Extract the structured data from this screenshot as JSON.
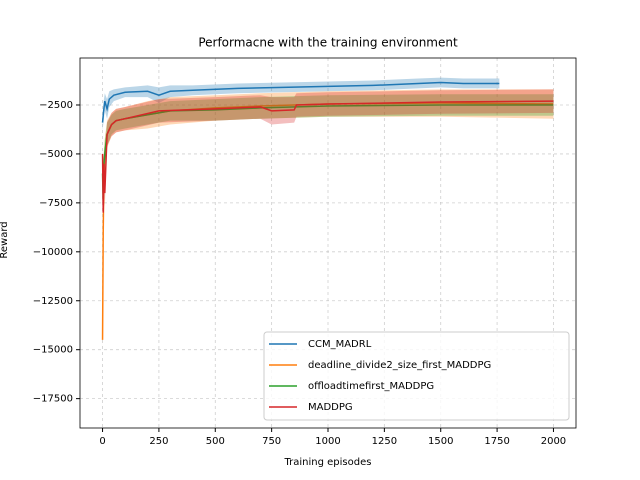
{
  "chart_data": {
    "type": "line",
    "title": "Performacne with the training environment",
    "x_label": "Training episodes",
    "y_label": "Reward",
    "xlim": [
      -100,
      2100
    ],
    "ylim": [
      -19000,
      -100
    ],
    "xticks": [
      0,
      250,
      500,
      750,
      1000,
      1250,
      1500,
      1750,
      2000
    ],
    "yticks": [
      {
        "value": -2500,
        "label": "−2500"
      },
      {
        "value": -5000,
        "label": "−5000"
      },
      {
        "value": -7500,
        "label": "−7500"
      },
      {
        "value": -10000,
        "label": "−10000"
      },
      {
        "value": -12500,
        "label": "−12500"
      },
      {
        "value": -15000,
        "label": "−15000"
      },
      {
        "value": -17500,
        "label": "−17500"
      }
    ],
    "grid": true,
    "legend": "lower right",
    "series": [
      {
        "name": "CCM_MADRL",
        "color": "#1f77b4",
        "x": [
          0,
          5,
          10,
          20,
          30,
          50,
          100,
          200,
          250,
          300,
          400,
          600,
          800,
          1000,
          1200,
          1400,
          1500,
          1600,
          1760
        ],
        "values": [
          -3400,
          -2800,
          -2300,
          -2700,
          -2200,
          -2000,
          -1850,
          -1800,
          -2000,
          -1800,
          -1750,
          -1650,
          -1600,
          -1550,
          -1500,
          -1400,
          -1350,
          -1400,
          -1400
        ],
        "upper": [
          -3000,
          -2300,
          -1900,
          -2200,
          -1800,
          -1700,
          -1600,
          -1500,
          -1600,
          -1500,
          -1500,
          -1400,
          -1350,
          -1300,
          -1250,
          -1150,
          -1100,
          -1150,
          -1150
        ],
        "lower": [
          -3800,
          -3300,
          -2800,
          -3200,
          -2600,
          -2300,
          -2100,
          -2100,
          -2400,
          -2100,
          -2000,
          -1900,
          -1850,
          -1800,
          -1750,
          -1650,
          -1600,
          -1650,
          -1650
        ]
      },
      {
        "name": "deadline_divide2_size_first_MADDPG",
        "color": "#ff7f0e",
        "x": [
          0,
          3,
          6,
          10,
          20,
          40,
          60,
          100,
          200,
          300,
          500,
          700,
          1000,
          1500,
          2000
        ],
        "values": [
          -14500,
          -9000,
          -6000,
          -5000,
          -4000,
          -3500,
          -3300,
          -3200,
          -3000,
          -2800,
          -2650,
          -2550,
          -2450,
          -2400,
          -2450
        ],
        "upper": [
          -14000,
          -8000,
          -5000,
          -4200,
          -3300,
          -2900,
          -2700,
          -2600,
          -2300,
          -2100,
          -2000,
          -1900,
          -1800,
          -1700,
          -1700
        ],
        "lower": [
          -15000,
          -10000,
          -7000,
          -5800,
          -4700,
          -4100,
          -3900,
          -3800,
          -3700,
          -3500,
          -3300,
          -3200,
          -3100,
          -3100,
          -3200
        ]
      },
      {
        "name": "offloadtimefirst_MADDPG",
        "color": "#2ca02c",
        "x": [
          0,
          3,
          6,
          10,
          20,
          40,
          60,
          100,
          200,
          300,
          500,
          700,
          1000,
          1500,
          2000
        ],
        "values": [
          -6000,
          -7500,
          -5500,
          -5000,
          -4000,
          -3500,
          -3300,
          -3200,
          -3000,
          -2800,
          -2750,
          -2650,
          -2550,
          -2500,
          -2500
        ],
        "upper": [
          -5500,
          -6800,
          -4800,
          -4300,
          -3400,
          -3000,
          -2800,
          -2700,
          -2500,
          -2300,
          -2200,
          -2100,
          -2000,
          -1950,
          -1950
        ],
        "lower": [
          -6500,
          -8200,
          -6200,
          -5700,
          -4600,
          -4000,
          -3800,
          -3700,
          -3500,
          -3300,
          -3300,
          -3200,
          -3100,
          -3050,
          -3050
        ]
      },
      {
        "name": "MADDPG",
        "color": "#d62728",
        "x": [
          0,
          3,
          6,
          10,
          20,
          40,
          60,
          100,
          250,
          500,
          700,
          750,
          850,
          860,
          1000,
          1500,
          2000
        ],
        "values": [
          -5000,
          -8000,
          -5500,
          -7000,
          -4000,
          -3500,
          -3300,
          -3200,
          -2800,
          -2700,
          -2600,
          -2800,
          -2750,
          -2500,
          -2450,
          -2350,
          -2300
        ],
        "upper": [
          -4500,
          -7200,
          -4800,
          -6300,
          -3400,
          -2900,
          -2700,
          -2600,
          -2200,
          -2100,
          -2000,
          -2100,
          -2100,
          -1900,
          -1850,
          -1750,
          -1700
        ],
        "lower": [
          -5500,
          -8800,
          -6200,
          -7700,
          -4600,
          -4100,
          -3900,
          -3800,
          -3400,
          -3300,
          -3200,
          -3500,
          -3400,
          -3100,
          -3050,
          -2950,
          -2900
        ]
      }
    ]
  }
}
